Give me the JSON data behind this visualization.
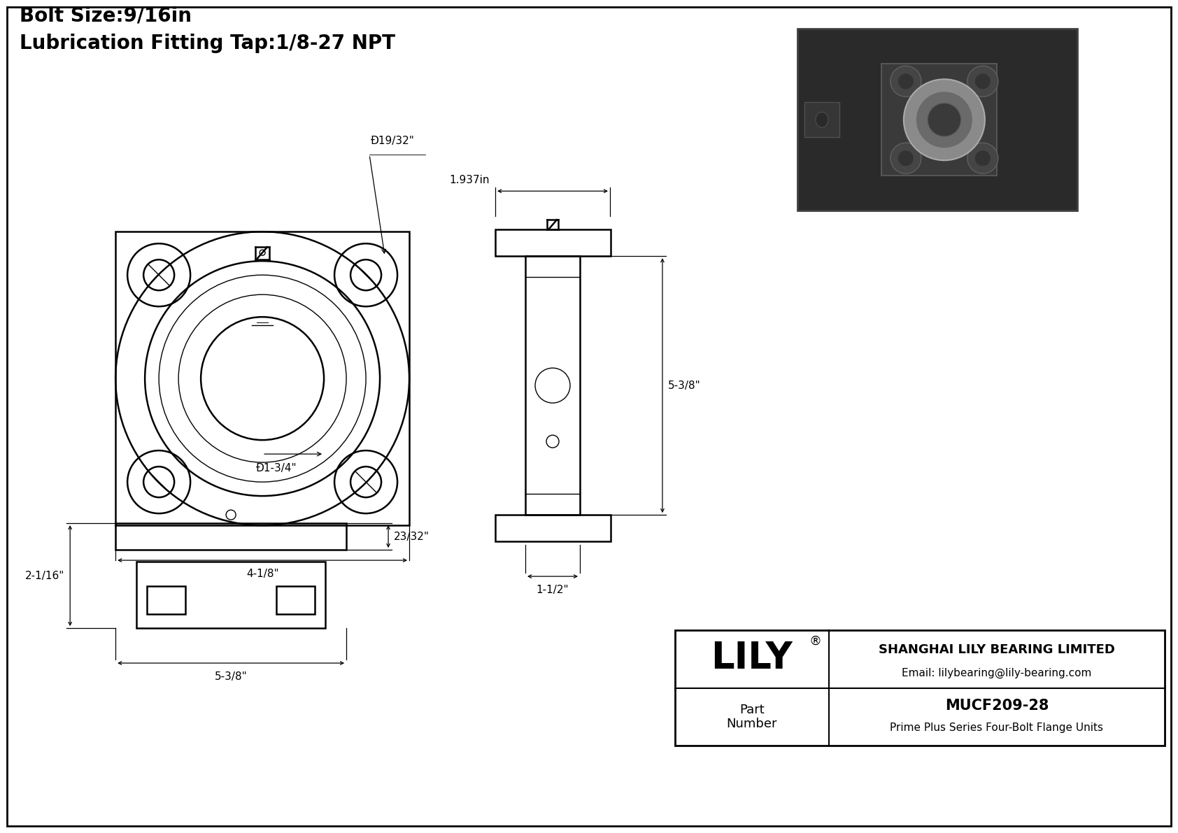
{
  "title_line1": "Bolt Size:9/16in",
  "title_line2": "Lubrication Fitting Tap:1/8-27 NPT",
  "bg_color": "#ffffff",
  "line_color": "#000000",
  "company_name": "SHANGHAI LILY BEARING LIMITED",
  "company_email": "Email: lilybearing@lily-bearing.com",
  "part_label": "Part\nNumber",
  "part_number": "MUCF209-28",
  "part_desc": "Prime Plus Series Four-Bolt Flange Units",
  "lily_text": "LILY",
  "dim_bolt_circle": "Ð19/32\"",
  "dim_bore": "Ð1-3/4\"",
  "dim_width": "4-1/8\"",
  "dim_height_side": "5-3/8\"",
  "dim_depth": "1.937in",
  "dim_foot": "1-1/2\"",
  "dim_front_height": "2-1/16\"",
  "dim_front_width": "5-3/8\"",
  "dim_front_depth": "23/32\""
}
